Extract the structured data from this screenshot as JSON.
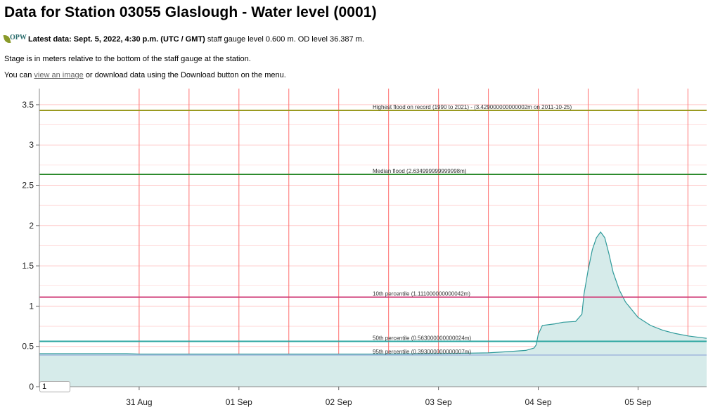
{
  "header": {
    "title": "Data for Station 03055 Glaslough - Water level (0001)",
    "logo_text": "OPW",
    "latest_label": "Latest data: Sept. 5, 2022, 4:30 p.m. (UTC / GMT)",
    "latest_rest": "staff gauge level 0.600 m. OD level 36.387 m.",
    "stage_note": "Stage is in meters relative to the bottom of the staff gauge at the station.",
    "image_prefix": "You can",
    "image_link": "view an image",
    "image_suffix": "or download data using the Download button on the menu."
  },
  "controls": {
    "range_value": "1"
  },
  "colors": {
    "series_line": "#2e9a9a",
    "series_fill": "#d6ebea",
    "grid_vertical": "#ff7070",
    "grid_horizontal": "#ffc8c8",
    "highest_flood": "#9a9a20",
    "median_flood": "#2e8b2e",
    "p10": "#d0407a",
    "p50": "#2aa5a0",
    "p95": "#a0b8dd"
  },
  "chart_data": {
    "type": "area",
    "x_unit": "date-time (2022)",
    "ylim": [
      0,
      3.7
    ],
    "xlim": [
      "2022-08-30T00:00",
      "2022-09-05T16:30"
    ],
    "yticks": [
      0,
      0.5,
      1,
      1.5,
      2,
      2.5,
      3,
      3.5
    ],
    "xticks": [
      {
        "t": "2022-08-31T00:00",
        "label": "31 Aug"
      },
      {
        "t": "2022-09-01T00:00",
        "label": "01 Sep"
      },
      {
        "t": "2022-09-02T00:00",
        "label": "02 Sep"
      },
      {
        "t": "2022-09-03T00:00",
        "label": "03 Sep"
      },
      {
        "t": "2022-09-04T00:00",
        "label": "04 Sep"
      },
      {
        "t": "2022-09-05T00:00",
        "label": "05 Sep"
      }
    ],
    "grid": true,
    "reference_lines": [
      {
        "name": "highest",
        "label": "Highest flood on record (1990 to 2021) - (3.429000000000002m on 2011-10-25)",
        "value": 3.429
      },
      {
        "name": "median",
        "label": "Median flood (2.634999999999998m)",
        "value": 2.635
      },
      {
        "name": "p10",
        "label": "10th percentile (1.111000000000042m)",
        "value": 1.111
      },
      {
        "name": "p50",
        "label": "50th percentile (0.563000000000024m)",
        "value": 0.563
      },
      {
        "name": "p95",
        "label": "95th percentile (0.393000000000007m)",
        "value": 0.393
      }
    ],
    "series": [
      {
        "points": [
          [
            "2022-08-30T00:00",
            0.41
          ],
          [
            "2022-08-30T12:00",
            0.41
          ],
          [
            "2022-08-30T21:00",
            0.41
          ],
          [
            "2022-08-31T00:00",
            0.405
          ],
          [
            "2022-08-31T12:00",
            0.405
          ],
          [
            "2022-09-01T00:00",
            0.405
          ],
          [
            "2022-09-01T12:00",
            0.405
          ],
          [
            "2022-09-02T00:00",
            0.405
          ],
          [
            "2022-09-02T12:00",
            0.405
          ],
          [
            "2022-09-03T00:00",
            0.41
          ],
          [
            "2022-09-03T12:00",
            0.42
          ],
          [
            "2022-09-03T18:00",
            0.44
          ],
          [
            "2022-09-03T21:00",
            0.45
          ],
          [
            "2022-09-03T23:00",
            0.48
          ],
          [
            "2022-09-03T23:30",
            0.52
          ],
          [
            "2022-09-04T00:00",
            0.65
          ],
          [
            "2022-09-04T01:00",
            0.76
          ],
          [
            "2022-09-04T04:00",
            0.78
          ],
          [
            "2022-09-04T06:00",
            0.8
          ],
          [
            "2022-09-04T09:00",
            0.81
          ],
          [
            "2022-09-04T10:30",
            0.9
          ],
          [
            "2022-09-04T11:00",
            1.15
          ],
          [
            "2022-09-04T12:00",
            1.45
          ],
          [
            "2022-09-04T13:00",
            1.7
          ],
          [
            "2022-09-04T14:00",
            1.85
          ],
          [
            "2022-09-04T15:00",
            1.92
          ],
          [
            "2022-09-04T16:00",
            1.85
          ],
          [
            "2022-09-04T17:00",
            1.65
          ],
          [
            "2022-09-04T18:00",
            1.42
          ],
          [
            "2022-09-04T19:30",
            1.2
          ],
          [
            "2022-09-04T21:00",
            1.05
          ],
          [
            "2022-09-05T00:00",
            0.86
          ],
          [
            "2022-09-05T03:00",
            0.76
          ],
          [
            "2022-09-05T06:00",
            0.7
          ],
          [
            "2022-09-05T09:00",
            0.66
          ],
          [
            "2022-09-05T12:00",
            0.63
          ],
          [
            "2022-09-05T16:30",
            0.6
          ]
        ]
      }
    ]
  }
}
